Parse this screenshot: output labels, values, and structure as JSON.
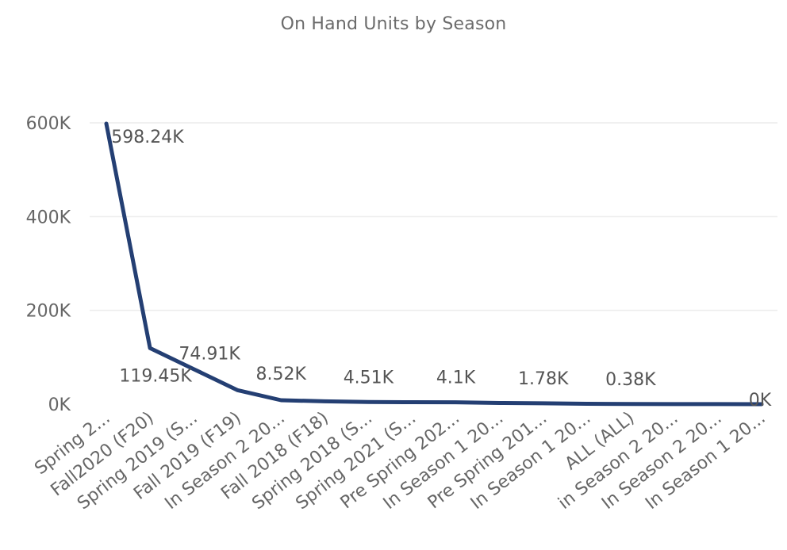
{
  "chart_data": {
    "type": "line",
    "title": "On Hand Units by Season",
    "xlabel": "",
    "ylabel": "",
    "ylim": [
      0,
      600000
    ],
    "y_ticks": [
      "0K",
      "200K",
      "400K",
      "600K"
    ],
    "y_tick_values": [
      0,
      200000,
      400000,
      600000
    ],
    "grid": true,
    "categories": [
      "Spring 2...",
      "Fall2020 (F20)",
      "Spring 2019 (S...",
      "Fall 2019 (F19)",
      "In Season 2 20...",
      "Fall 2018 (F18)",
      "Spring 2018 (S...",
      "Spring 2021 (S...",
      "Pre Spring 202...",
      "In Season 1 20...",
      "Pre Spring 201...",
      "In Season 1 20...",
      "ALL (ALL)",
      "in Season 2 20...",
      "In Season 2 20...",
      "In Season 1 20..."
    ],
    "values": [
      598240,
      119450,
      74910,
      30000,
      8520,
      6000,
      4510,
      4300,
      4100,
      2500,
      1780,
      800,
      380,
      200,
      100,
      0
    ],
    "data_labels": [
      {
        "index": 0,
        "text": "598.24K"
      },
      {
        "index": 1,
        "text": "119.45K"
      },
      {
        "index": 2,
        "text": "74.91K"
      },
      {
        "index": 4,
        "text": "8.52K"
      },
      {
        "index": 6,
        "text": "4.51K"
      },
      {
        "index": 8,
        "text": "4.1K"
      },
      {
        "index": 10,
        "text": "1.78K"
      },
      {
        "index": 12,
        "text": "0.38K"
      },
      {
        "index": 15,
        "text": "0K"
      }
    ],
    "line_color": "#243f73"
  }
}
